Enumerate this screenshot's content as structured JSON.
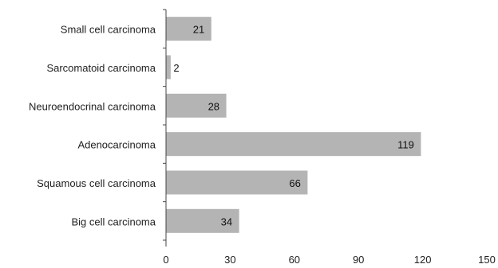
{
  "chart_data": {
    "type": "bar",
    "orientation": "horizontal",
    "categories": [
      "Small cell carcinoma",
      "Sarcomatoid carcinoma",
      "Neuroendocrinal carcinoma",
      "Adenocarcinoma",
      "Squamous cell carcinoma",
      "Big cell carcinoma"
    ],
    "values": [
      21,
      2,
      28,
      119,
      66,
      34
    ],
    "data_labels": [
      "21",
      "2",
      "28",
      "119",
      "66",
      "34"
    ],
    "xlim": [
      0,
      150
    ],
    "xticks": [
      0,
      30,
      60,
      90,
      120,
      150
    ],
    "xtick_labels": [
      "0",
      "30",
      "60",
      "90",
      "120",
      "150"
    ],
    "grid": false,
    "legend": "none",
    "colors": {
      "bar": "#b4b4b4",
      "axis": "#444444",
      "text": "#222222"
    }
  }
}
